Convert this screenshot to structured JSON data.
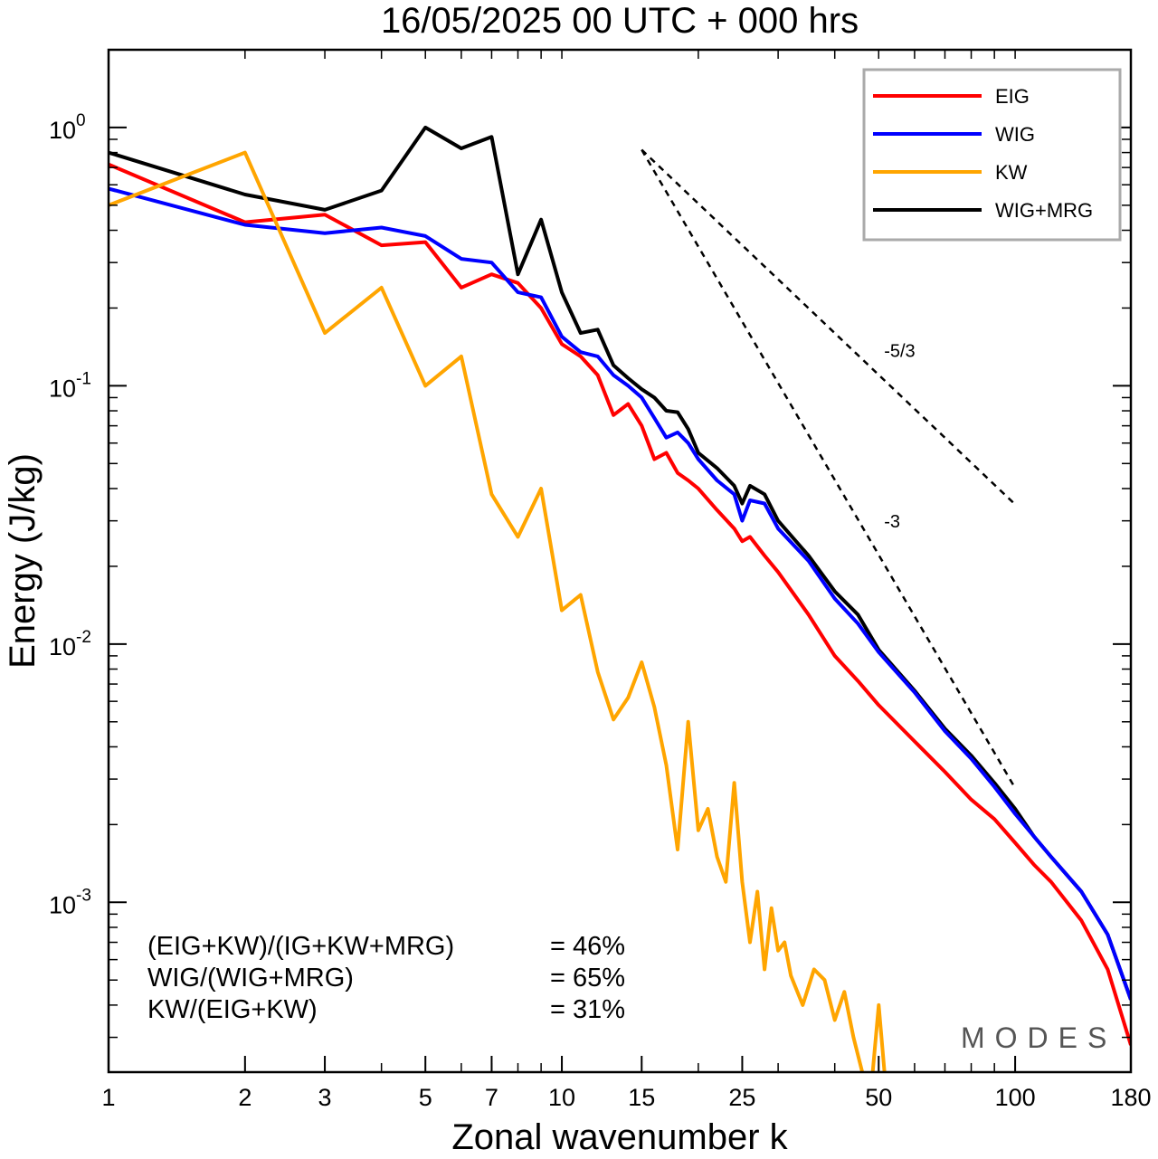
{
  "chart_data": {
    "type": "line",
    "title": "16/05/2025  00 UTC  + 000 hrs",
    "xlabel": "Zonal wavenumber k",
    "ylabel": "Energy (J/kg)",
    "xscale": "log",
    "yscale": "log",
    "xlim": [
      1,
      180
    ],
    "ylim": [
      0.00022,
      2.0
    ],
    "xticks": [
      1,
      2,
      3,
      5,
      7,
      10,
      15,
      25,
      50,
      100,
      180
    ],
    "xtick_labels": [
      "1",
      "2",
      "3",
      "5",
      "7",
      "10",
      "15",
      "25",
      "50",
      "100",
      "180"
    ],
    "yticks": [
      {
        "base": "10",
        "exp": "0",
        "value": 1
      },
      {
        "base": "10",
        "exp": "-1",
        "value": 0.1
      },
      {
        "base": "10",
        "exp": "-2",
        "value": 0.01
      },
      {
        "base": "10",
        "exp": "-3",
        "value": 0.001
      }
    ],
    "legend_position": "top-right",
    "grid": false,
    "series": [
      {
        "name": "EIG",
        "color": "#ff0000",
        "x": [
          1,
          2,
          3,
          4,
          5,
          6,
          7,
          8,
          9,
          10,
          11,
          12,
          13,
          14,
          15,
          16,
          17,
          18,
          19,
          20,
          22,
          24,
          25,
          26,
          28,
          30,
          35,
          40,
          45,
          50,
          60,
          70,
          80,
          90,
          100,
          110,
          120,
          140,
          160,
          180
        ],
        "y": [
          0.72,
          0.43,
          0.46,
          0.35,
          0.36,
          0.24,
          0.27,
          0.25,
          0.2,
          0.145,
          0.13,
          0.11,
          0.077,
          0.085,
          0.07,
          0.052,
          0.055,
          0.046,
          0.043,
          0.04,
          0.033,
          0.028,
          0.025,
          0.026,
          0.022,
          0.019,
          0.013,
          0.009,
          0.0072,
          0.0058,
          0.0042,
          0.0032,
          0.0025,
          0.0021,
          0.0017,
          0.0014,
          0.0012,
          0.00085,
          0.00055,
          0.00028
        ]
      },
      {
        "name": "WIG",
        "color": "#0000ff",
        "x": [
          1,
          2,
          3,
          4,
          5,
          6,
          7,
          8,
          9,
          10,
          11,
          12,
          13,
          14,
          15,
          16,
          17,
          18,
          19,
          20,
          22,
          24,
          25,
          26,
          28,
          30,
          35,
          40,
          45,
          50,
          60,
          70,
          80,
          90,
          100,
          110,
          120,
          140,
          160,
          180
        ],
        "y": [
          0.58,
          0.42,
          0.39,
          0.41,
          0.38,
          0.31,
          0.3,
          0.23,
          0.22,
          0.155,
          0.135,
          0.13,
          0.11,
          0.1,
          0.09,
          0.075,
          0.063,
          0.066,
          0.06,
          0.052,
          0.043,
          0.038,
          0.03,
          0.036,
          0.035,
          0.028,
          0.021,
          0.015,
          0.012,
          0.0093,
          0.0065,
          0.0046,
          0.0036,
          0.0028,
          0.0022,
          0.0018,
          0.0015,
          0.0011,
          0.00075,
          0.00042
        ]
      },
      {
        "name": "KW",
        "color": "#ffa500",
        "x": [
          1,
          2,
          3,
          4,
          5,
          6,
          7,
          8,
          9,
          10,
          11,
          12,
          13,
          14,
          15,
          16,
          17,
          18,
          19,
          20,
          21,
          22,
          23,
          24,
          25,
          26,
          27,
          28,
          29,
          30,
          31,
          32,
          34,
          36,
          38,
          40,
          42,
          44,
          46,
          48,
          50,
          52,
          54
        ],
        "y": [
          0.5,
          0.8,
          0.16,
          0.24,
          0.1,
          0.13,
          0.038,
          0.026,
          0.04,
          0.0135,
          0.0155,
          0.0078,
          0.0051,
          0.0062,
          0.0085,
          0.0057,
          0.0034,
          0.0016,
          0.005,
          0.0019,
          0.0023,
          0.0015,
          0.0012,
          0.0029,
          0.0012,
          0.0007,
          0.0011,
          0.00055,
          0.00095,
          0.00065,
          0.0007,
          0.00052,
          0.0004,
          0.00055,
          0.0005,
          0.00035,
          0.00045,
          0.0003,
          0.00022,
          0.00018,
          0.0004,
          0.00018,
          0.00022
        ]
      },
      {
        "name": "WIG+MRG",
        "color": "#000000",
        "x": [
          1,
          2,
          3,
          4,
          5,
          6,
          7,
          8,
          9,
          10,
          11,
          12,
          13,
          14,
          15,
          16,
          17,
          18,
          19,
          20,
          22,
          24,
          25,
          26,
          28,
          30,
          35,
          40,
          45,
          50,
          60,
          70,
          80,
          90,
          100,
          110,
          120,
          140,
          160,
          180
        ],
        "y": [
          0.8,
          0.55,
          0.48,
          0.57,
          1.0,
          0.83,
          0.92,
          0.27,
          0.44,
          0.23,
          0.16,
          0.165,
          0.12,
          0.107,
          0.097,
          0.09,
          0.08,
          0.079,
          0.068,
          0.055,
          0.048,
          0.041,
          0.035,
          0.041,
          0.038,
          0.03,
          0.022,
          0.016,
          0.013,
          0.0095,
          0.0066,
          0.0047,
          0.0037,
          0.0029,
          0.0023,
          0.0018,
          0.0015,
          0.0011,
          0.00075,
          0.00042
        ]
      }
    ],
    "reference_slopes": [
      {
        "label": "-5/3",
        "slope": -1.6667,
        "x": [
          15,
          100
        ],
        "y0": 0.82
      },
      {
        "label": "-3",
        "slope": -3,
        "x": [
          15,
          100
        ],
        "y0": 0.82
      }
    ],
    "annotations": [
      {
        "label": "(EIG+KW)/(IG+KW+MRG)",
        "value": "= 46%"
      },
      {
        "label": "WIG/(WIG+MRG)",
        "value": "= 65%"
      },
      {
        "label": "KW/(EIG+KW)",
        "value": "= 31%"
      }
    ],
    "watermark": "MODES"
  }
}
